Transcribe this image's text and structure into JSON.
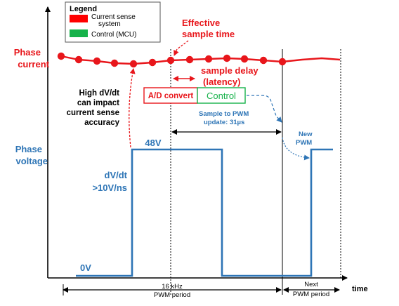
{
  "legend": {
    "title": "Legend",
    "items": [
      {
        "label_line1": "Current sense",
        "label_line2": "system",
        "color": "#ff0000"
      },
      {
        "label_line1": "Control (MCU)",
        "label_line2": "",
        "color": "#16b24a"
      }
    ]
  },
  "labels": {
    "phase_current": [
      "Phase",
      "current"
    ],
    "phase_voltage": [
      "Phase",
      "voltage"
    ],
    "effective_sample_time": [
      "Effective",
      "sample time"
    ],
    "sample_delay": [
      "sample delay",
      "(latency)"
    ],
    "ad_convert": "A/D convert",
    "control": "Control",
    "sample_to_pwm": [
      "Sample to PWM",
      "update: 31µs"
    ],
    "high_dvdt": [
      "High dV/dt",
      "can impact",
      "current sense",
      "accuracy"
    ],
    "new_pwm": [
      "New",
      "PWM"
    ],
    "v48": "48V",
    "dvdt": [
      "dV/dt",
      ">10V/ns"
    ],
    "v0": "0V",
    "pwm_period": [
      "16 kHz",
      "PWM period"
    ],
    "next_pwm_period": [
      "Next",
      "PWM period"
    ],
    "time": "time"
  },
  "colors": {
    "red": "#e8161b",
    "blue": "#2e75b6",
    "green": "#16b24a",
    "black": "#000000"
  }
}
